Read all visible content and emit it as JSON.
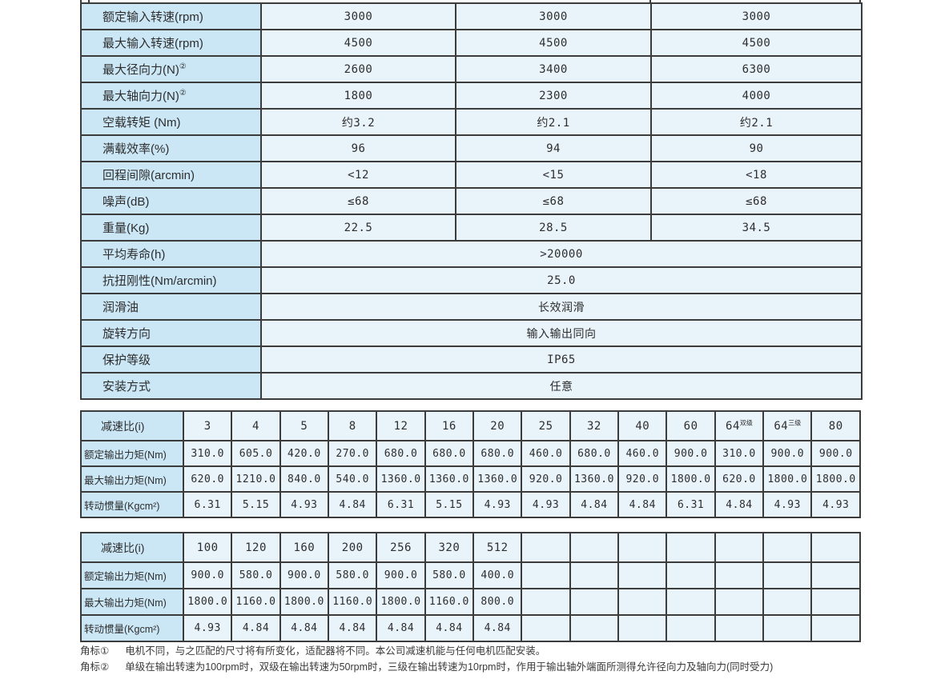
{
  "colors": {
    "label_cell_bg": "#cbe6f5",
    "value_cell_bg": "#e9f3fa",
    "border": "#3c3c3c",
    "text": "#2e2e2e"
  },
  "spec_table": {
    "rows": [
      {
        "label": "额定输入转速(rpm)",
        "values": [
          "3000",
          "3000",
          "3000"
        ]
      },
      {
        "label": "最大输入转速(rpm)",
        "values": [
          "4500",
          "4500",
          "4500"
        ]
      },
      {
        "label": "最大径向力(N)",
        "label_sup": "②",
        "values": [
          "2600",
          "3400",
          "6300"
        ]
      },
      {
        "label": "最大轴向力(N)",
        "label_sup": "②",
        "values": [
          "1800",
          "2300",
          "4000"
        ]
      },
      {
        "label": "空载转矩 (Nm)",
        "values": [
          "约3.2",
          "约2.1",
          "约2.1"
        ]
      },
      {
        "label": "满载效率(%)",
        "values": [
          "96",
          "94",
          "90"
        ]
      },
      {
        "label": "回程间隙(arcmin)",
        "values": [
          "<12",
          "<15",
          "<18"
        ]
      },
      {
        "label": "噪声(dB)",
        "values": [
          "≤68",
          "≤68",
          "≤68"
        ]
      },
      {
        "label": "重量(Kg)",
        "values": [
          "22.5",
          "28.5",
          "34.5"
        ]
      },
      {
        "label": "平均寿命(h)",
        "merged_value": ">20000"
      },
      {
        "label": "抗扭刚性(Nm/arcmin)",
        "merged_value": "25.0"
      },
      {
        "label": "润滑油",
        "merged_value": "长效润滑"
      },
      {
        "label": "旋转方向",
        "merged_value": "输入输出同向"
      },
      {
        "label": "保护等级",
        "merged_value": "IP65"
      },
      {
        "label": "安装方式",
        "merged_value": "任意"
      }
    ]
  },
  "ratio_table_1": {
    "corner_label": "减速比(i)",
    "columns": [
      {
        "text": "3"
      },
      {
        "text": "4"
      },
      {
        "text": "5"
      },
      {
        "text": "8"
      },
      {
        "text": "12"
      },
      {
        "text": "16"
      },
      {
        "text": "20"
      },
      {
        "text": "25"
      },
      {
        "text": "32"
      },
      {
        "text": "40"
      },
      {
        "text": "60"
      },
      {
        "text": "64",
        "sup": "双级"
      },
      {
        "text": "64",
        "sup": "三级"
      },
      {
        "text": "80"
      }
    ],
    "rows": [
      {
        "label": "额定输出力矩(Nm)",
        "values": [
          "310.0",
          "605.0",
          "420.0",
          "270.0",
          "680.0",
          "680.0",
          "680.0",
          "460.0",
          "680.0",
          "460.0",
          "900.0",
          "310.0",
          "900.0",
          "900.0"
        ]
      },
      {
        "label": "最大输出力矩(Nm)",
        "values": [
          "620.0",
          "1210.0",
          "840.0",
          "540.0",
          "1360.0",
          "1360.0",
          "1360.0",
          "920.0",
          "1360.0",
          "920.0",
          "1800.0",
          "620.0",
          "1800.0",
          "1800.0"
        ]
      },
      {
        "label": "转动惯量(Kgcm²)",
        "values": [
          "6.31",
          "5.15",
          "4.93",
          "4.84",
          "6.31",
          "5.15",
          "4.93",
          "4.93",
          "4.84",
          "4.84",
          "6.31",
          "4.84",
          "4.93",
          "4.93"
        ]
      }
    ]
  },
  "ratio_table_2": {
    "corner_label": "减速比(i)",
    "columns": [
      {
        "text": "100"
      },
      {
        "text": "120"
      },
      {
        "text": "160"
      },
      {
        "text": "200"
      },
      {
        "text": "256"
      },
      {
        "text": "320"
      },
      {
        "text": "512"
      },
      {
        "text": ""
      },
      {
        "text": ""
      },
      {
        "text": ""
      },
      {
        "text": ""
      },
      {
        "text": ""
      },
      {
        "text": ""
      },
      {
        "text": ""
      }
    ],
    "rows": [
      {
        "label": "额定输出力矩(Nm)",
        "values": [
          "900.0",
          "580.0",
          "900.0",
          "580.0",
          "900.0",
          "580.0",
          "400.0",
          "",
          "",
          "",
          "",
          "",
          "",
          ""
        ]
      },
      {
        "label": "最大输出力矩(Nm)",
        "values": [
          "1800.0",
          "1160.0",
          "1800.0",
          "1160.0",
          "1800.0",
          "1160.0",
          "800.0",
          "",
          "",
          "",
          "",
          "",
          "",
          ""
        ]
      },
      {
        "label": "转动惯量(Kgcm²)",
        "values": [
          "4.93",
          "4.84",
          "4.84",
          "4.84",
          "4.84",
          "4.84",
          "4.84",
          "",
          "",
          "",
          "",
          "",
          "",
          ""
        ]
      }
    ]
  },
  "footnotes": [
    {
      "tag": "角标①",
      "text": "电机不同，与之匹配的尺寸将有所变化，适配器将不同。本公司减速机能与任何电机匹配安装。"
    },
    {
      "tag": "角标②",
      "text": "单级在输出转速为100rpm时，双级在输出转速为50rpm时，三级在输出转速为10rpm时，作用于输出轴外端面所测得允许径向力及轴向力(同时受力)"
    }
  ]
}
